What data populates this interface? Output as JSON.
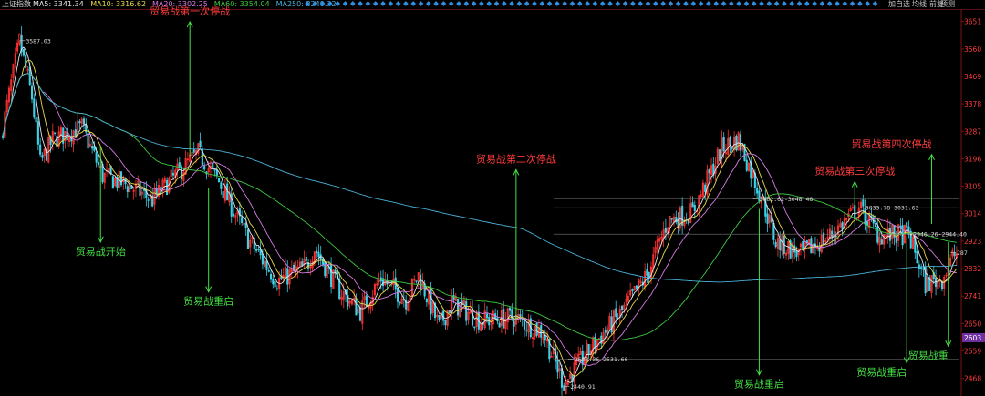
{
  "topbar": {
    "index_name": "上证指数",
    "ma_items": [
      {
        "label": "MA5: 3341.34",
        "color": "#e6e6e6"
      },
      {
        "label": "MA10: 3316.62",
        "color": "#e8d84a"
      },
      {
        "label": "MA20: 3302.25",
        "color": "#d67be0"
      },
      {
        "label": "MA60: 3354.04",
        "color": "#3ec83e"
      },
      {
        "label": "MA250: 3249.32",
        "color": "#4ab0d8"
      }
    ],
    "buttons": [
      "加自选",
      "均线",
      "前复",
      "预测"
    ]
  },
  "colors": {
    "up": "#ff3232",
    "down": "#3fd0e6",
    "ma5": "#e6e6e6",
    "ma10": "#e8d84a",
    "ma20": "#d67be0",
    "ma60": "#3ec83e",
    "ma250": "#4ab0d8",
    "axis_text": "#ff3b3b",
    "red_annotation": "#ff3b3b",
    "green_annotation": "#44e044",
    "current_price_bg": "#7030a0"
  },
  "chart_data": {
    "type": "candlestick",
    "y_ticks": [
      3651,
      3560,
      3469,
      3378,
      3287,
      3196,
      3105,
      3014,
      2923,
      2832,
      2741,
      2650,
      2559,
      2468
    ],
    "ylim": [
      2440,
      3680
    ],
    "current_price_label": "2603",
    "price_labels": [
      {
        "text": "3587.03",
        "x_index": 8,
        "y": 3587.03
      },
      {
        "text": "2440.91",
        "x_index": 270,
        "y": 2440.91
      },
      {
        "text": "2653.36-2531.66",
        "x_index": 272,
        "y": 2531.66
      },
      {
        "text": "3062.62-3048.48",
        "x_index": 361,
        "y": 3062.62
      },
      {
        "text": "3033.78-3031.63",
        "x_index": 412,
        "y": 3033.78
      },
      {
        "text": "2946.26-2944.40",
        "x_index": 435,
        "y": 2946.26
      },
      {
        "text": "287",
        "x_index": 456,
        "y": 2885
      }
    ],
    "annotations": [
      {
        "text": "贸易战第一次停战",
        "color": "red",
        "x_index": 90,
        "arrow_top": 3650,
        "arrow_bottom": 3205
      },
      {
        "text": "贸易战开始",
        "color": "green",
        "x_index": 47,
        "arrow_top": 3240,
        "arrow_bottom": 2920
      },
      {
        "text": "贸易战重启",
        "color": "green",
        "x_index": 99,
        "arrow_top": 3100,
        "arrow_bottom": 2755
      },
      {
        "text": "贸易战第二次停战",
        "color": "red",
        "x_index": 247,
        "arrow_top": 3160,
        "arrow_bottom": 2660
      },
      {
        "text": "贸易战重启",
        "color": "green",
        "x_index": 364,
        "arrow_top": 3030,
        "arrow_bottom": 2480
      },
      {
        "text": "贸易战第三次停战",
        "color": "red",
        "x_index": 410,
        "arrow_top": 3120,
        "arrow_bottom": 3030
      },
      {
        "text": "贸易战第四次停战",
        "color": "red",
        "x_index": 447,
        "arrow_top": 3210,
        "arrow_bottom": 2980
      },
      {
        "text": "贸易战重启",
        "color": "green",
        "x_index": 435,
        "arrow_top": 2940,
        "arrow_bottom": 2520
      },
      {
        "text": "贸易战重",
        "color": "green",
        "x_index": 455,
        "arrow_top": 2920,
        "arrow_bottom": 2575
      }
    ],
    "waypoints": [
      [
        0,
        3300
      ],
      [
        8,
        3587
      ],
      [
        14,
        3400
      ],
      [
        18,
        3180
      ],
      [
        24,
        3260
      ],
      [
        38,
        3300
      ],
      [
        48,
        3140
      ],
      [
        60,
        3110
      ],
      [
        72,
        3060
      ],
      [
        80,
        3120
      ],
      [
        94,
        3215
      ],
      [
        104,
        3120
      ],
      [
        118,
        2930
      ],
      [
        132,
        2790
      ],
      [
        146,
        2840
      ],
      [
        150,
        2900
      ],
      [
        162,
        2760
      ],
      [
        172,
        2690
      ],
      [
        182,
        2800
      ],
      [
        194,
        2730
      ],
      [
        200,
        2810
      ],
      [
        210,
        2640
      ],
      [
        216,
        2720
      ],
      [
        230,
        2660
      ],
      [
        246,
        2670
      ],
      [
        260,
        2620
      ],
      [
        270,
        2450
      ],
      [
        282,
        2560
      ],
      [
        298,
        2690
      ],
      [
        310,
        2810
      ],
      [
        320,
        2990
      ],
      [
        332,
        3020
      ],
      [
        346,
        3230
      ],
      [
        354,
        3260
      ],
      [
        366,
        3050
      ],
      [
        372,
        2920
      ],
      [
        384,
        2880
      ],
      [
        398,
        2940
      ],
      [
        412,
        3033
      ],
      [
        422,
        2940
      ],
      [
        436,
        2946
      ],
      [
        444,
        2780
      ],
      [
        452,
        2800
      ],
      [
        458,
        2880
      ]
    ],
    "n_candles": 460,
    "seed": 7
  }
}
